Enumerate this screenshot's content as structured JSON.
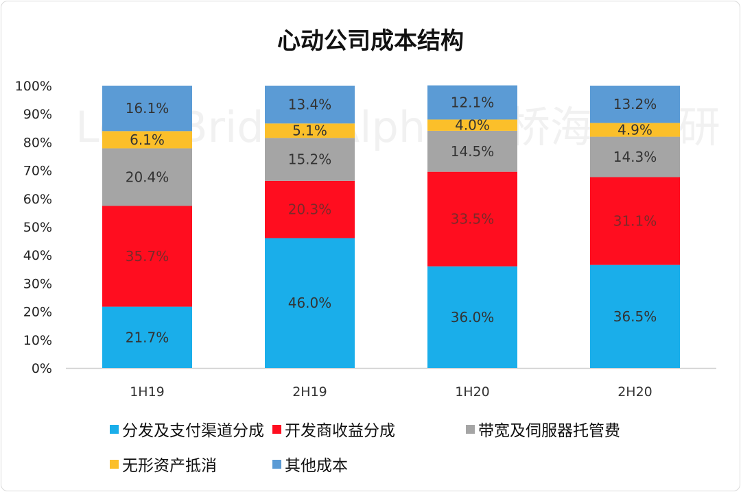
{
  "chart_data": {
    "type": "bar",
    "stacked": true,
    "title": "心动公司成本结构",
    "xlabel": "",
    "ylabel": "",
    "ylim": [
      0,
      100
    ],
    "yticks": [
      "0%",
      "10%",
      "20%",
      "30%",
      "40%",
      "50%",
      "60%",
      "70%",
      "80%",
      "90%",
      "100%"
    ],
    "categories": [
      "1H19",
      "2H19",
      "1H20",
      "2H20"
    ],
    "series": [
      {
        "name": "分发及支付渠道分成",
        "color": "#1aaeea",
        "values": [
          21.7,
          46.0,
          36.0,
          36.5
        ],
        "labels": [
          "21.7%",
          "46.0%",
          "36.0%",
          "36.5%"
        ]
      },
      {
        "name": "开发商收益分成",
        "color": "#ff0d1f",
        "values": [
          35.7,
          20.3,
          33.5,
          31.1
        ],
        "labels": [
          "35.7%",
          "20.3%",
          "33.5%",
          "31.1%"
        ]
      },
      {
        "name": "带宽及伺服器托管费",
        "color": "#a5a5a5",
        "values": [
          20.4,
          15.2,
          14.5,
          14.3
        ],
        "labels": [
          "20.4%",
          "15.2%",
          "14.5%",
          "14.3%"
        ]
      },
      {
        "name": "无形资产抵消",
        "color": "#fbbf2a",
        "values": [
          6.1,
          5.1,
          4.0,
          4.9
        ],
        "labels": [
          "6.1%",
          "5.1%",
          "4.0%",
          "4.9%"
        ]
      },
      {
        "name": "其他成本",
        "color": "#5b9bd5",
        "values": [
          16.1,
          13.4,
          12.1,
          13.2
        ],
        "labels": [
          "16.1%",
          "13.4%",
          "12.1%",
          "13.2%"
        ]
      }
    ],
    "legend_position": "bottom"
  },
  "watermark": "LongBridge Alpha 长桥海豚投研"
}
